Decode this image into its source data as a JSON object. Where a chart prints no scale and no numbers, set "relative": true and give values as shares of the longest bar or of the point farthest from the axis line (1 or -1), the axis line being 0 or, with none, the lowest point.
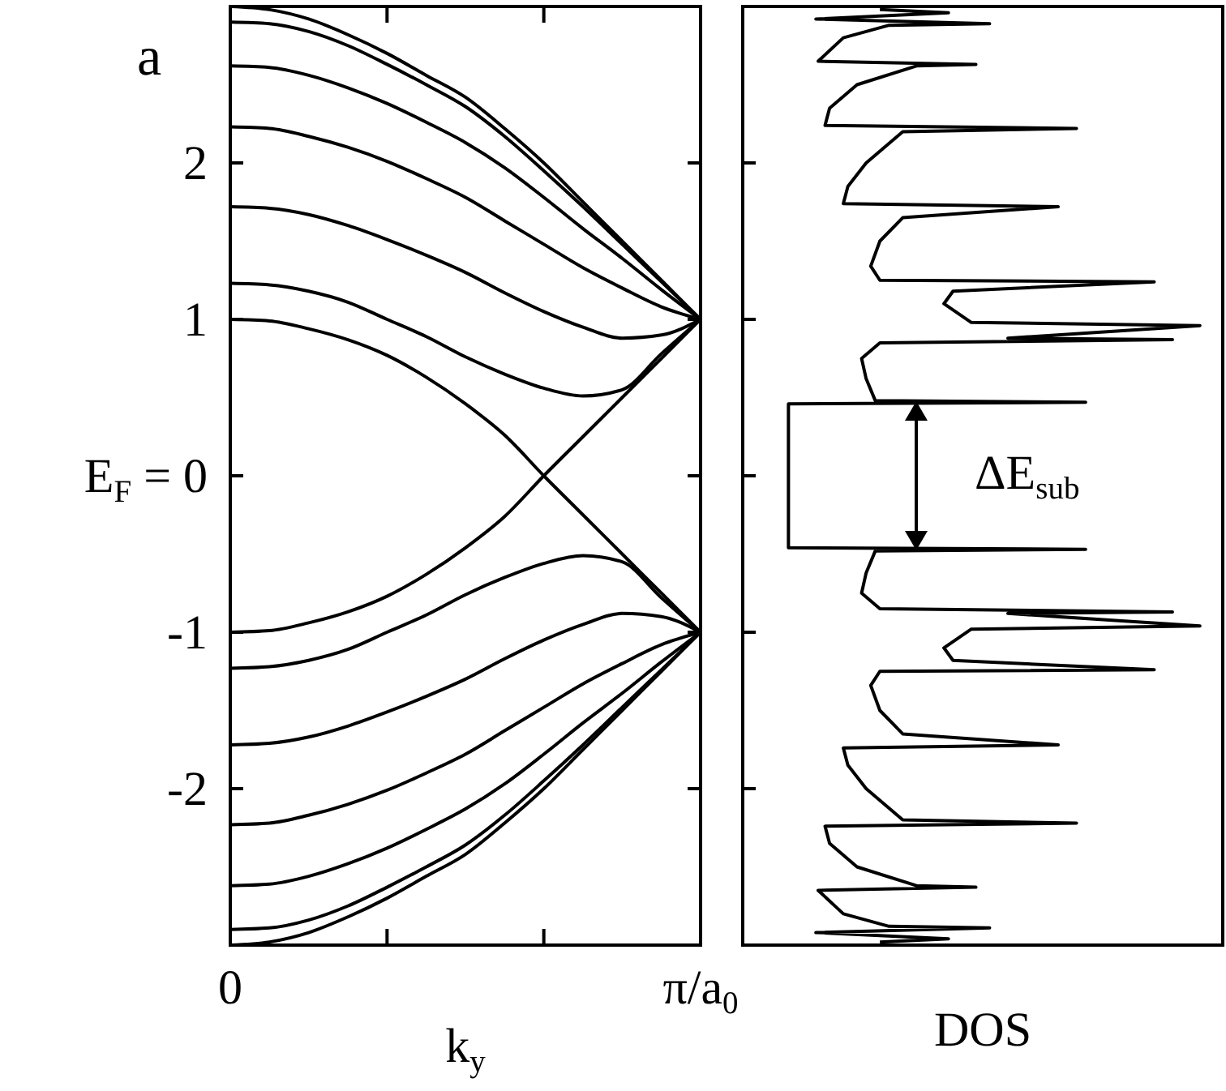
{
  "chart_data": [
    {
      "type": "line",
      "title": "a",
      "xlabel": "k$_{y}$",
      "ylim": [
        -3,
        3
      ],
      "categories": [
        "0",
        null,
        null,
        null,
        null,
        null,
        null,
        null,
        null,
        null,
        null,
        null,
        "π/a$_{0}$"
      ],
      "yticks": [
        -2,
        -1,
        {
          "value": 0,
          "label": "E$_{F}$ = 0"
        },
        1,
        2
      ],
      "series": [
        {
          "color": "#000000",
          "values": [
            1,
            0.99,
            0.94,
            0.87,
            0.77,
            0.63,
            0.46,
            0.26,
            0,
            -0.25,
            -0.5,
            -0.75,
            -1
          ]
        },
        {
          "color": "#000000",
          "values": [
            1.23,
            1.22,
            1.18,
            1.11,
            1.0,
            0.89,
            0.76,
            0.65,
            0.56,
            0.51,
            0.55,
            0.78,
            1
          ]
        },
        {
          "color": "#000000",
          "values": [
            1.72,
            1.71,
            1.67,
            1.6,
            1.51,
            1.41,
            1.3,
            1.17,
            1.05,
            0.95,
            0.88,
            0.9,
            1
          ]
        },
        {
          "color": "#000000",
          "values": [
            2.23,
            2.22,
            2.17,
            2.1,
            2.01,
            1.9,
            1.78,
            1.63,
            1.48,
            1.33,
            1.2,
            1.08,
            1
          ]
        },
        {
          "color": "#000000",
          "values": [
            2.62,
            2.61,
            2.56,
            2.48,
            2.38,
            2.26,
            2.13,
            1.97,
            1.78,
            1.58,
            1.39,
            1.19,
            1
          ]
        },
        {
          "color": "#000000",
          "values": [
            2.9,
            2.89,
            2.84,
            2.75,
            2.63,
            2.5,
            2.36,
            2.17,
            1.95,
            1.72,
            1.48,
            1.24,
            1
          ]
        },
        {
          "color": "#000000",
          "values": [
            3,
            2.98,
            2.92,
            2.82,
            2.7,
            2.56,
            2.42,
            2.22,
            2.0,
            1.75,
            1.5,
            1.25,
            1
          ]
        },
        {
          "color": "#000000",
          "values": [
            -1,
            -0.99,
            -0.94,
            -0.87,
            -0.77,
            -0.63,
            -0.46,
            -0.26,
            0,
            0.25,
            0.5,
            0.75,
            1
          ]
        },
        {
          "color": "#000000",
          "values": [
            -1.23,
            -1.22,
            -1.18,
            -1.11,
            -1.0,
            -0.89,
            -0.76,
            -0.65,
            -0.56,
            -0.51,
            -0.55,
            -0.78,
            -1
          ]
        },
        {
          "color": "#000000",
          "values": [
            -1.72,
            -1.71,
            -1.67,
            -1.6,
            -1.51,
            -1.41,
            -1.3,
            -1.17,
            -1.05,
            -0.95,
            -0.88,
            -0.9,
            -1
          ]
        },
        {
          "color": "#000000",
          "values": [
            -2.23,
            -2.22,
            -2.17,
            -2.1,
            -2.01,
            -1.9,
            -1.78,
            -1.63,
            -1.48,
            -1.33,
            -1.2,
            -1.08,
            -1
          ]
        },
        {
          "color": "#000000",
          "values": [
            -2.62,
            -2.61,
            -2.56,
            -2.48,
            -2.38,
            -2.26,
            -2.13,
            -1.97,
            -1.78,
            -1.58,
            -1.39,
            -1.19,
            -1
          ]
        },
        {
          "color": "#000000",
          "values": [
            -2.9,
            -2.89,
            -2.84,
            -2.75,
            -2.63,
            -2.5,
            -2.36,
            -2.17,
            -1.95,
            -1.72,
            -1.48,
            -1.24,
            -1
          ]
        },
        {
          "color": "#000000",
          "values": [
            -3,
            -2.98,
            -2.92,
            -2.82,
            -2.7,
            -2.56,
            -2.42,
            -2.22,
            -2.0,
            -1.75,
            -1.5,
            -1.25,
            -1
          ]
        }
      ]
    },
    {
      "type": "line",
      "orientation": "horizontal",
      "relative": true,
      "xlabel": "DOS",
      "ylim": [
        -3,
        3
      ],
      "yticks": [
        -2,
        -1,
        0,
        1,
        2
      ],
      "tick_labels": false,
      "annotations": [
        "ΔE$_{sub}$"
      ],
      "series": [
        {
          "color": "#000000",
          "x": [
            -2.98,
            -2.96,
            -2.92,
            -2.89,
            -2.88,
            -2.8,
            -2.65,
            -2.63,
            -2.62,
            -2.5,
            -2.35,
            -2.24,
            -2.22,
            -2.2,
            -2.0,
            -1.85,
            -1.74,
            -1.72,
            -1.65,
            -1.5,
            -1.34,
            -1.25,
            -1.24,
            -1.18,
            -1.1,
            -0.98,
            -0.96,
            -0.88,
            -0.87,
            -0.85,
            -0.75,
            -0.62,
            -0.48,
            -0.47,
            -0.46,
            0,
            0.46,
            0.47,
            0.48,
            0.62,
            0.75,
            0.85,
            0.87,
            0.88,
            0.96,
            0.98,
            1.1,
            1.18,
            1.24,
            1.25,
            1.34,
            1.5,
            1.65,
            1.72,
            1.74,
            1.85,
            2.0,
            2.2,
            2.22,
            2.24,
            2.35,
            2.5,
            2.62,
            2.63,
            2.65,
            2.8,
            2.88,
            2.89,
            2.92,
            2.96,
            2.98
          ],
          "values": [
            0.3,
            0.45,
            0.16,
            0.54,
            0.32,
            0.22,
            0.165,
            0.51,
            0.38,
            0.25,
            0.19,
            0.18,
            0.73,
            0.35,
            0.27,
            0.23,
            0.22,
            0.69,
            0.35,
            0.3,
            0.28,
            0.3,
            0.9,
            0.46,
            0.44,
            0.5,
            1,
            0.58,
            0.94,
            0.3,
            0.26,
            0.27,
            0.29,
            0.75,
            0.1,
            0.1,
            0.1,
            0.75,
            0.29,
            0.27,
            0.26,
            0.3,
            0.94,
            0.58,
            1,
            0.5,
            0.44,
            0.46,
            0.9,
            0.3,
            0.28,
            0.3,
            0.35,
            0.69,
            0.22,
            0.23,
            0.27,
            0.35,
            0.73,
            0.18,
            0.19,
            0.25,
            0.38,
            0.51,
            0.165,
            0.22,
            0.32,
            0.54,
            0.16,
            0.45,
            0.3
          ]
        }
      ]
    }
  ]
}
